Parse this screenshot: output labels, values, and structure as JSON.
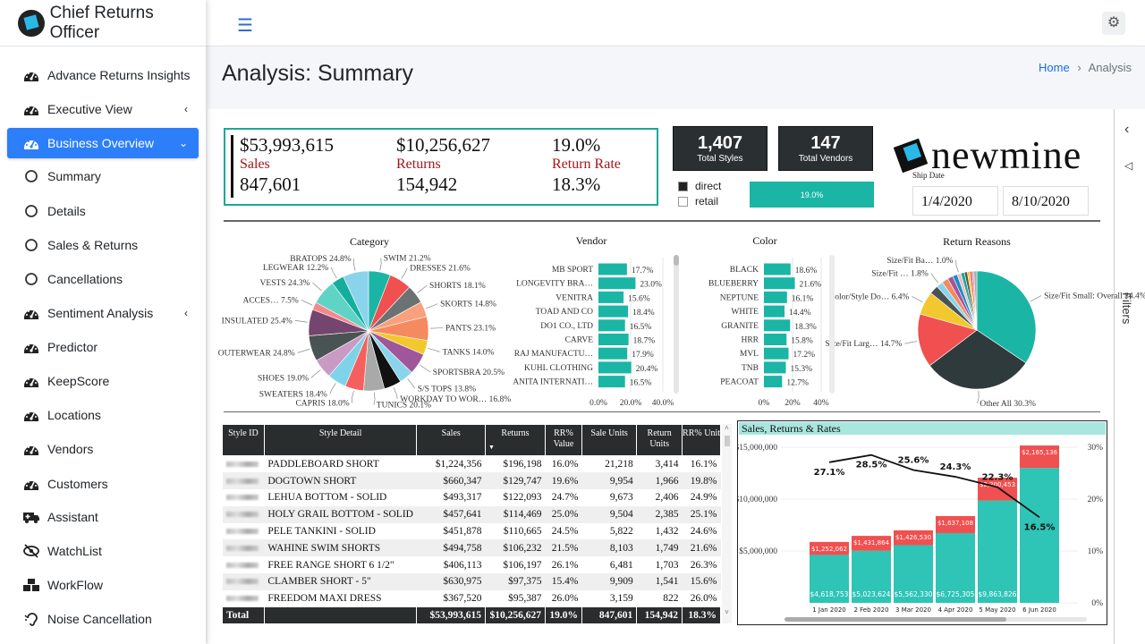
{
  "sidebar": {
    "brand": "Chief Returns Officer",
    "items": [
      {
        "label": "Advance Returns Insights",
        "icon": "gauge"
      },
      {
        "label": "Executive View",
        "icon": "gauge",
        "chevron": "‹"
      },
      {
        "label": "Business Overview",
        "icon": "gauge",
        "chevron": "⌄",
        "active": true
      },
      {
        "label": "Summary",
        "icon": "circle"
      },
      {
        "label": "Details",
        "icon": "circle"
      },
      {
        "label": "Sales & Returns",
        "icon": "circle"
      },
      {
        "label": "Cancellations",
        "icon": "circle"
      },
      {
        "label": "Sentiment Analysis",
        "icon": "gauge",
        "chevron": "‹"
      },
      {
        "label": "Predictor",
        "icon": "gauge"
      },
      {
        "label": "KeepScore",
        "icon": "gauge"
      },
      {
        "label": "Locations",
        "icon": "gauge"
      },
      {
        "label": "Vendors",
        "icon": "gauge"
      },
      {
        "label": "Customers",
        "icon": "gauge"
      },
      {
        "label": "Assistant",
        "icon": "ambulance"
      },
      {
        "label": "WatchList",
        "icon": "eye-slash"
      },
      {
        "label": "WorkFlow",
        "icon": "cubes"
      },
      {
        "label": "Noise Cancellation",
        "icon": "ear"
      }
    ]
  },
  "header": {
    "menu_icon": "hamburger-icon",
    "settings_icon": "gear-icon",
    "title": "Analysis: Summary",
    "breadcrumb": {
      "home": "Home",
      "separator": "›",
      "current": "Analysis"
    }
  },
  "kpi": {
    "sales_value": "$53,993,615",
    "sales_label": "Sales",
    "sales_units": "847,601",
    "returns_value": "$10,256,627",
    "returns_label": "Returns",
    "returns_units": "154,942",
    "rate_value": "19.0%",
    "rate_label": "Return Rate",
    "rate_units": "18.3%"
  },
  "cards": {
    "styles": {
      "value": "1,407",
      "label": "Total Styles"
    },
    "vendors": {
      "value": "147",
      "label": "Total Vendors"
    }
  },
  "channel": {
    "direct": "direct",
    "retail": "retail",
    "direct_color": "#222222"
  },
  "rate_bar": {
    "label": "19.0%",
    "percent": 100
  },
  "logo": "newmine",
  "ship_date": {
    "label": "Ship Date",
    "start": "1/4/2020",
    "end": "8/10/2020"
  },
  "filters": {
    "label": "Filters",
    "collapse": "‹"
  },
  "table": {
    "columns": [
      "Style ID",
      "Style Detail",
      "Sales",
      "Returns",
      "RR% Value",
      "Sale Units",
      "Return Units",
      "RR% Unit"
    ],
    "sort_column": "Returns",
    "rows": [
      [
        "PADDLEBOARD SHORT",
        "$1,224,356",
        "$196,198",
        "16.0%",
        "21,218",
        "3,414",
        "16.1%"
      ],
      [
        "DOGTOWN SHORT",
        "$660,347",
        "$129,747",
        "19.6%",
        "9,954",
        "1,966",
        "19.8%"
      ],
      [
        "LEHUA BOTTOM - SOLID",
        "$493,317",
        "$122,093",
        "24.7%",
        "9,673",
        "2,406",
        "24.9%"
      ],
      [
        "HOLY GRAIL BOTTOM - SOLID",
        "$457,641",
        "$114,469",
        "25.0%",
        "9,504",
        "2,385",
        "25.1%"
      ],
      [
        "PELE TANKINI - SOLID",
        "$451,878",
        "$110,665",
        "24.5%",
        "5,822",
        "1,432",
        "24.6%"
      ],
      [
        "WAHINE SWIM SHORTS",
        "$494,758",
        "$106,232",
        "21.5%",
        "8,103",
        "1,749",
        "21.6%"
      ],
      [
        "FREE RANGE SHORT 6 1/2\"",
        "$406,113",
        "$106,197",
        "26.1%",
        "6,481",
        "1,703",
        "26.3%"
      ],
      [
        "CLAMBER SHORT - 5\"",
        "$630,975",
        "$97,375",
        "15.4%",
        "9,909",
        "1,541",
        "15.6%"
      ],
      [
        "FREEDOM MAXI DRESS",
        "$367,520",
        "$95,387",
        "26.0%",
        "3,159",
        "822",
        "26.0%"
      ]
    ],
    "total": [
      "Total",
      "",
      "$53,993,615",
      "$10,256,627",
      "19.0%",
      "847,601",
      "154,942",
      "18.3%"
    ]
  },
  "chart_data": [
    {
      "type": "pie",
      "title": "Category",
      "labels": [
        "SWIM 21.2%",
        "DRESSES 21.6%",
        "SHORTS 18.1%",
        "SKORTS 14.8%",
        "PANTS 23.1%",
        "TANKS 14.0%",
        "SPORTSBRA 20.5%",
        "S/S TOPS 13.8%",
        "WORKDAY TO WOR… 16.8%",
        "TUNICS 20.1%",
        "CAPRIS 18.0%",
        "SWEATERS 18.4%",
        "SHOES 19.0%",
        "OUTERWEAR 24.8%",
        "INSULATED 25.4%",
        "ACCES… 7.5%",
        "VESTS 24.3%",
        "LEGWEAR 12.2%",
        "BRATOPS 24.8%"
      ],
      "values": [
        21.2,
        21.6,
        18.1,
        14.8,
        23.1,
        14.0,
        20.5,
        13.8,
        16.8,
        20.1,
        18.0,
        18.4,
        19.0,
        24.8,
        25.4,
        7.5,
        24.3,
        12.2,
        24.8
      ],
      "colors": [
        "#1ab5a5",
        "#f0504f",
        "#6b7272",
        "#f9a07c",
        "#f5895f",
        "#f2c82f",
        "#a0569a",
        "#8ad4eb",
        "#111111",
        "#a9a9a9",
        "#f5605e",
        "#7fd3e8",
        "#c99ac4",
        "#4a5353",
        "#74456f",
        "#f7888a",
        "#5fd3c6",
        "#15ae9c",
        "#8ad4eb"
      ]
    },
    {
      "type": "bar",
      "orientation": "horizontal",
      "title": "Vendor",
      "categories": [
        "MB SPORT",
        "LONGEVITY BRA…",
        "VENITRA",
        "TOAD AND CO",
        "DO1 CO., LTD",
        "CARVE",
        "RAJ MANUFACTU…",
        "KUHL CLOTHING",
        "ANITA INTERNATI…"
      ],
      "values": [
        17.7,
        23.0,
        15.6,
        18.4,
        16.5,
        18.7,
        17.9,
        20.4,
        16.5
      ],
      "value_labels": [
        "17.7%",
        "23.0%",
        "15.6%",
        "18.4%",
        "16.5%",
        "18.7%",
        "17.9%",
        "20.4%",
        "16.5%"
      ],
      "ticks": [
        "0.0%",
        "20.0%",
        "40.0%"
      ],
      "xlim": [
        0,
        40
      ],
      "grid": true,
      "color": "#1ab5a5"
    },
    {
      "type": "bar",
      "orientation": "horizontal",
      "title": "Color",
      "categories": [
        "BLACK",
        "BLUEBERRY",
        "NEPTUNE",
        "WHITE",
        "GRANITE",
        "HRR",
        "MVL",
        "TNB",
        "PEACOAT"
      ],
      "values": [
        18.6,
        21.6,
        16.1,
        14.4,
        18.3,
        15.8,
        17.2,
        15.3,
        12.7
      ],
      "value_labels": [
        "18.6%",
        "21.6%",
        "16.1%",
        "14.4%",
        "18.3%",
        "15.8%",
        "17.2%",
        "15.3%",
        "12.7%"
      ],
      "ticks": [
        "0%",
        "20%",
        "40%"
      ],
      "xlim": [
        0,
        40
      ],
      "grid": true,
      "color": "#1ab5a5"
    },
    {
      "type": "pie",
      "title": "Return Reasons",
      "labels": [
        "Size/Fit Small: Overall 34.4%",
        "Other All 30.3%",
        "Size/Fit Larg… 14.7%",
        "Color/Style Do… 6.4%",
        "",
        "Size/Fit … 1.8%",
        "",
        "",
        "",
        "Size/Fit Ba… 1.0%",
        "",
        "",
        "",
        "",
        "",
        ""
      ],
      "values": [
        34.4,
        30.3,
        14.7,
        6.4,
        2.4,
        1.8,
        1.8,
        1.5,
        1.3,
        1.0,
        1.0,
        0.8,
        0.7,
        0.6,
        0.5,
        0.8
      ],
      "colors": [
        "#1ab5a5",
        "#2f3a3d",
        "#f0504f",
        "#f2c82f",
        "#4a5353",
        "#8ad4eb",
        "#f5895f",
        "#a0569a",
        "#1b8fc4",
        "#f7b8c0",
        "#15ae9c",
        "#555555",
        "#f2c82f",
        "#f0504f",
        "#c99ac4",
        "#aaaaaa"
      ]
    },
    {
      "type": "bar+line",
      "title": "Sales, Returns & Rates",
      "categories": [
        "1 Jan 2020",
        "2 Feb 2020",
        "3 Mar 2020",
        "4 Apr 2020",
        "5 May 2020",
        "6 Jun 2020"
      ],
      "series": [
        {
          "name": "Sales",
          "type": "stacked-bar",
          "values": [
            4618753,
            5023624,
            5562330,
            6725305,
            9863826,
            13000000
          ],
          "labels": [
            "$4,618,753",
            "$5,023,624",
            "$5,562,330",
            "$6,725,305",
            "$9,863,826",
            ""
          ],
          "color": "#2ec4b6"
        },
        {
          "name": "Returns",
          "type": "stacked-bar",
          "values": [
            1252062,
            1431864,
            1426530,
            1637108,
            2200453,
            2165136
          ],
          "labels": [
            "$1,252,062",
            "$1,431,864",
            "$1,426,530",
            "$1,637,108",
            "$2,200,453",
            "$2,165,136"
          ],
          "color": "#f0504f"
        },
        {
          "name": "Return Rate",
          "type": "line",
          "values": [
            27.1,
            28.5,
            25.6,
            24.3,
            22.3,
            16.5
          ],
          "labels": [
            "27.1%",
            "28.5%",
            "25.6%",
            "24.3%",
            "22.3%",
            "16.5%"
          ],
          "color": "#111111"
        }
      ],
      "y_ticks": [
        "$5,000,000",
        "$10,000,000",
        "$15,000,000"
      ],
      "ylim": [
        0,
        15000000
      ],
      "y2_ticks": [
        "0%",
        "10%",
        "20%",
        "30%"
      ],
      "y2lim": [
        0,
        30
      ],
      "grid": true
    }
  ]
}
